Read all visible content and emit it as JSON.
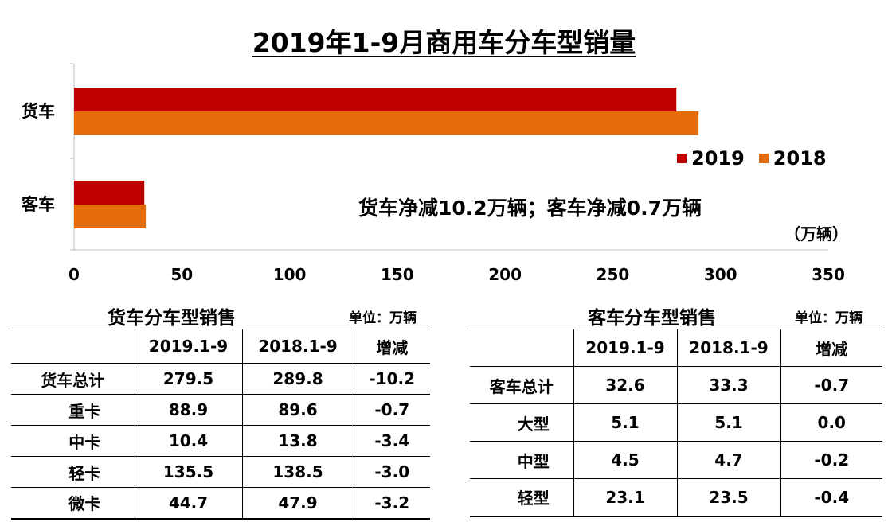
{
  "title": "2019年1-9月商用车分车型销量",
  "chart_data": {
    "type": "bar",
    "orientation": "horizontal",
    "title": "2019年1-9月商用车分车型销量",
    "categories": [
      "货车",
      "客车"
    ],
    "series": [
      {
        "name": "2019",
        "values": [
          279.5,
          32.6
        ],
        "color": "#c00000"
      },
      {
        "name": "2018",
        "values": [
          289.8,
          33.3
        ],
        "color": "#e46c0a"
      }
    ],
    "xlim": [
      0,
      350
    ],
    "xticks": [
      0,
      50,
      100,
      150,
      200,
      250,
      300,
      350
    ],
    "unit": "（万辆）",
    "annotation": "货车净减10.2万辆；客车净减0.7万辆",
    "legend_position": "right"
  },
  "truck_table": {
    "title": "货车分车型销售",
    "unit": "单位：万辆",
    "headers": [
      "",
      "2019.1-9",
      "2018.1-9",
      "增减"
    ],
    "rows": [
      [
        "货车总计",
        "279.5",
        "289.8",
        "-10.2"
      ],
      [
        "重卡",
        "88.9",
        "89.6",
        "-0.7"
      ],
      [
        "中卡",
        "10.4",
        "13.8",
        "-3.4"
      ],
      [
        "轻卡",
        "135.5",
        "138.5",
        "-3.0"
      ],
      [
        "微卡",
        "44.7",
        "47.9",
        "-3.2"
      ]
    ]
  },
  "bus_table": {
    "title": "客车分车型销售",
    "unit": "单位：万辆",
    "headers": [
      "",
      "2019.1-9",
      "2018.1-9",
      "增减"
    ],
    "rows": [
      [
        "客车总计",
        "32.6",
        "33.3",
        "-0.7"
      ],
      [
        "大型",
        "5.1",
        "5.1",
        "0.0"
      ],
      [
        "中型",
        "4.5",
        "4.7",
        "-0.2"
      ],
      [
        "轻型",
        "23.1",
        "23.5",
        "-0.4"
      ]
    ]
  }
}
